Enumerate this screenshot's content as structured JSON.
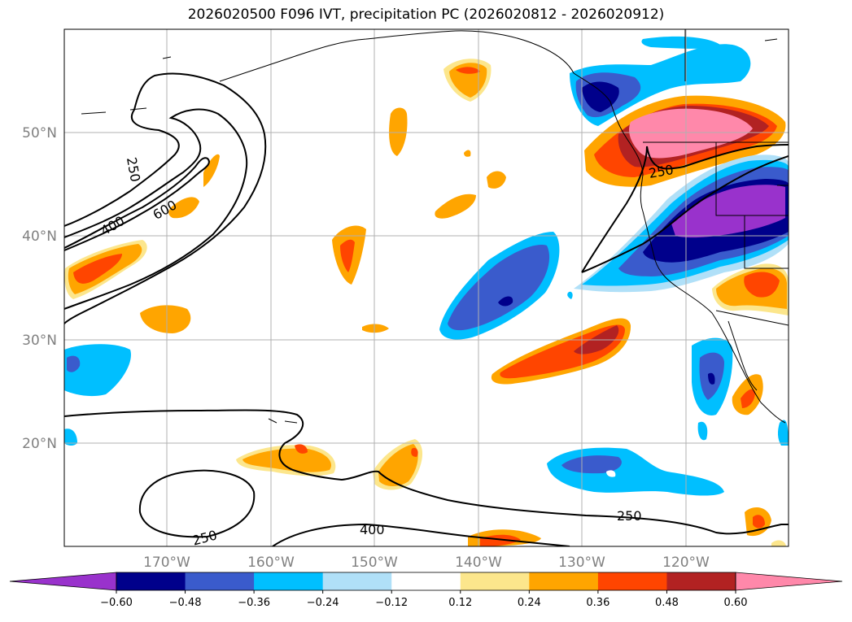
{
  "title": "2026020500 F096 IVT, precipitation PC (2026020812 - 2026020912)",
  "lon_ticks": [
    "170°W",
    "160°W",
    "150°W",
    "140°W",
    "130°W",
    "120°W"
  ],
  "lat_ticks": [
    "50°N",
    "40°N",
    "30°N",
    "20°N"
  ],
  "colorbar": {
    "ticks": [
      "−0.60",
      "−0.48",
      "−0.36",
      "−0.24",
      "−0.12",
      "0.12",
      "0.24",
      "0.36",
      "0.48",
      "0.60"
    ],
    "colors": [
      "#9932cc",
      "#00008b",
      "#3a5bcc",
      "#00bfff",
      "#b0e0f8",
      "#ffffff",
      "#fce68c",
      "#ffa500",
      "#ff4500",
      "#b22222",
      "#ff88aa"
    ]
  },
  "contour_labels": [
    "250",
    "400",
    "600",
    "250",
    "250",
    "400",
    "250"
  ]
}
